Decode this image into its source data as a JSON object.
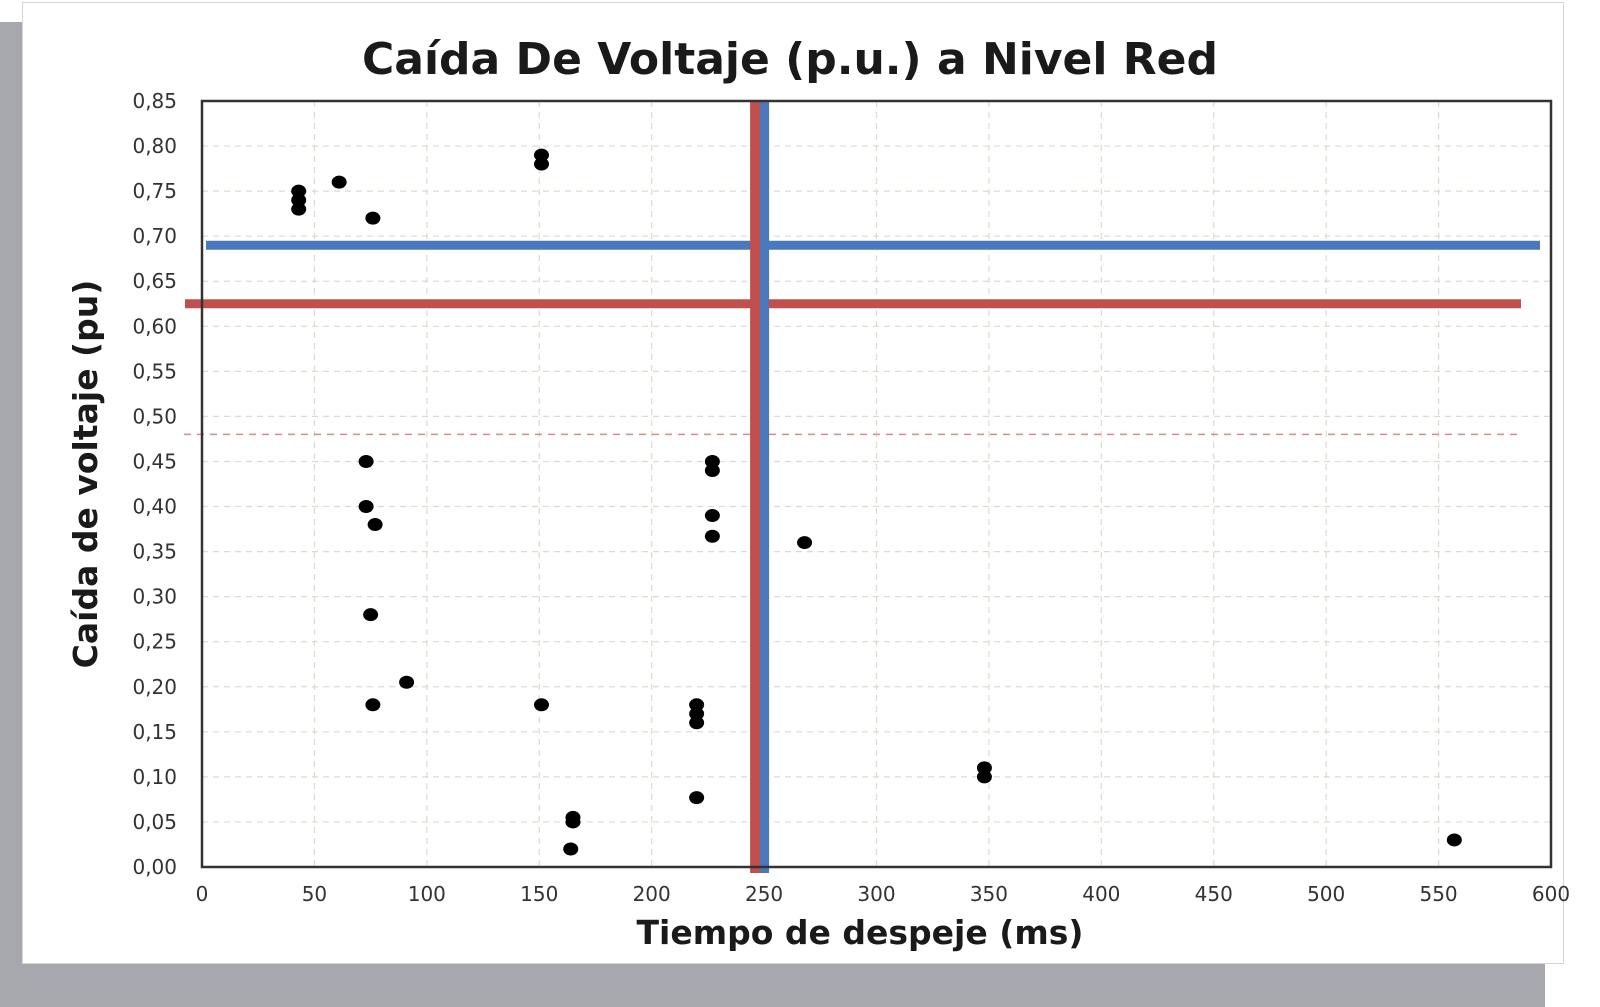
{
  "chart_data": {
    "type": "scatter",
    "title": "Caída De Voltaje (p.u.) a Nivel Red",
    "xlabel": "Tiempo de despeje (ms)",
    "ylabel": "Caída de voltaje (pu)",
    "xlim": [
      0,
      600
    ],
    "ylim": [
      0,
      0.85
    ],
    "xticks": [
      0,
      50,
      100,
      150,
      200,
      250,
      300,
      350,
      400,
      450,
      500,
      550,
      600
    ],
    "yticks": [
      0,
      0.05,
      0.1,
      0.15,
      0.2,
      0.25,
      0.3,
      0.35,
      0.4,
      0.45,
      0.5,
      0.55,
      0.6,
      0.65,
      0.7,
      0.75,
      0.8,
      0.85
    ],
    "xtick_labels": [
      "0",
      "50",
      "100",
      "150",
      "200",
      "250",
      "300",
      "350",
      "400",
      "450",
      "500",
      "550",
      "600"
    ],
    "ytick_labels": [
      "0,00",
      "0,05",
      "0,10",
      "0,15",
      "0,20",
      "0,25",
      "0,30",
      "0,35",
      "0,40",
      "0,45",
      "0,50",
      "0,55",
      "0,60",
      "0,65",
      "0,70",
      "0,75",
      "0,80",
      "0,85"
    ],
    "grid": true,
    "legend": "none",
    "points": [
      {
        "x": 43,
        "y": 0.75
      },
      {
        "x": 43,
        "y": 0.74
      },
      {
        "x": 43,
        "y": 0.73
      },
      {
        "x": 61,
        "y": 0.76
      },
      {
        "x": 76,
        "y": 0.72
      },
      {
        "x": 151,
        "y": 0.79
      },
      {
        "x": 151,
        "y": 0.78
      },
      {
        "x": 73,
        "y": 0.45
      },
      {
        "x": 73,
        "y": 0.4
      },
      {
        "x": 77,
        "y": 0.38
      },
      {
        "x": 75,
        "y": 0.28
      },
      {
        "x": 91,
        "y": 0.205
      },
      {
        "x": 76,
        "y": 0.18
      },
      {
        "x": 151,
        "y": 0.18
      },
      {
        "x": 165,
        "y": 0.055
      },
      {
        "x": 165,
        "y": 0.05
      },
      {
        "x": 164,
        "y": 0.02
      },
      {
        "x": 220,
        "y": 0.18
      },
      {
        "x": 220,
        "y": 0.17
      },
      {
        "x": 220,
        "y": 0.16
      },
      {
        "x": 220,
        "y": 0.077
      },
      {
        "x": 227,
        "y": 0.45
      },
      {
        "x": 227,
        "y": 0.44
      },
      {
        "x": 227,
        "y": 0.39
      },
      {
        "x": 227,
        "y": 0.367
      },
      {
        "x": 268,
        "y": 0.36
      },
      {
        "x": 348,
        "y": 0.11
      },
      {
        "x": 348,
        "y": 0.1
      },
      {
        "x": 557,
        "y": 0.03
      }
    ],
    "reference_lines": [
      {
        "orientation": "horizontal",
        "value": 0.69,
        "color": "#4a78bd",
        "style": "solid"
      },
      {
        "orientation": "horizontal",
        "value": 0.625,
        "color": "#c0504d",
        "style": "solid"
      },
      {
        "orientation": "horizontal",
        "value": 0.48,
        "color": "#d98b8b",
        "style": "dashed"
      },
      {
        "orientation": "vertical",
        "value": 250,
        "color": "#4a78bd",
        "style": "solid"
      },
      {
        "orientation": "vertical",
        "value": 246,
        "color": "#c0504d",
        "style": "solid"
      }
    ],
    "point_color": "#000000"
  }
}
